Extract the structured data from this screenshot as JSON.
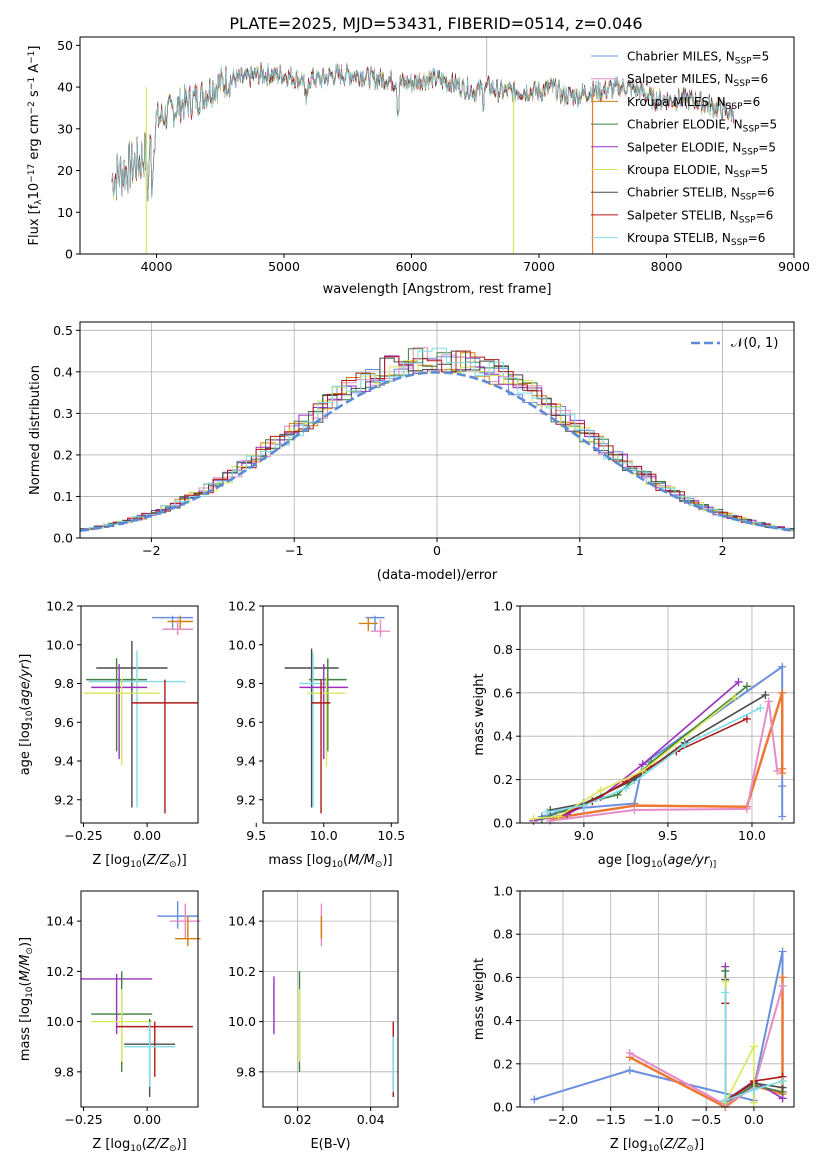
{
  "title": "PLATE=2025, MJD=53431, FIBERID=0514, z=0.046",
  "colors": {
    "chabrier_miles": "#6a8fdd",
    "salpeter_miles": "#e58cc6",
    "kroupa_miles": "#d2800c",
    "chabrier_elodie": "#3f7f3f",
    "salpeter_elodie": "#9b30c0",
    "kroupa_elodie": "#dbe65a",
    "chabrier_stelib": "#4a4a4a",
    "salpeter_stelib": "#b01818",
    "kroupa_stelib": "#7fdde6",
    "orange": "#ee7733",
    "gaussian": "#5b8bd6"
  },
  "chart_data": [
    {
      "type": "line",
      "panel": "spectrum",
      "xlabel": "wavelength [Angstrom, rest frame]",
      "ylabel": "Flux [f",
      "ylabel_parts": [
        "Flux [f",
        "λ",
        "10",
        "−17",
        " erg cm",
        "−2",
        " s",
        "−1",
        " A",
        "−1",
        "]"
      ],
      "xlim": [
        3400,
        9000
      ],
      "ylim": [
        0,
        52
      ],
      "xticks": [
        "4000",
        "5000",
        "6000",
        "7000",
        "8000",
        "9000"
      ],
      "yticks": [
        "0",
        "10",
        "20",
        "30",
        "40",
        "50"
      ],
      "legend_position": "top-right",
      "legend": [
        {
          "name": "Chabrier MILES, N",
          "sub": "SSP",
          "tail": "=5",
          "color": "#6a8fdd"
        },
        {
          "name": "Salpeter MILES, N",
          "sub": "SSP",
          "tail": "=6",
          "color": "#e58cc6"
        },
        {
          "name": "Kroupa MILES, N",
          "sub": "SSP",
          "tail": "=6",
          "color": "#d2800c"
        },
        {
          "name": "Chabrier ELODIE, N",
          "sub": "SSP",
          "tail": "=5",
          "color": "#3f7f3f"
        },
        {
          "name": "Salpeter ELODIE, N",
          "sub": "SSP",
          "tail": "=5",
          "color": "#9b30c0"
        },
        {
          "name": "Kroupa ELODIE, N",
          "sub": "SSP",
          "tail": "=5",
          "color": "#dbe65a"
        },
        {
          "name": "Chabrier STELIB, N",
          "sub": "SSP",
          "tail": "=6",
          "color": "#4a4a4a"
        },
        {
          "name": "Salpeter STELIB, N",
          "sub": "SSP",
          "tail": "=6",
          "color": "#b01818"
        },
        {
          "name": "Kroupa STELIB, N",
          "sub": "SSP",
          "tail": "=6",
          "color": "#7fdde6"
        }
      ],
      "continuum_points": [
        [
          3650,
          18
        ],
        [
          3750,
          20
        ],
        [
          3850,
          22
        ],
        [
          3950,
          25
        ],
        [
          4000,
          32
        ],
        [
          4100,
          34
        ],
        [
          4200,
          36
        ],
        [
          4300,
          37
        ],
        [
          4400,
          39
        ],
        [
          4500,
          41
        ],
        [
          4600,
          42
        ],
        [
          4700,
          42
        ],
        [
          4800,
          43
        ],
        [
          4900,
          43
        ],
        [
          5000,
          43
        ],
        [
          5100,
          42
        ],
        [
          5200,
          42
        ],
        [
          5300,
          42
        ],
        [
          5400,
          43
        ],
        [
          5500,
          43
        ],
        [
          5600,
          43
        ],
        [
          5700,
          42
        ],
        [
          5800,
          42
        ],
        [
          5900,
          41
        ],
        [
          6000,
          41
        ],
        [
          6100,
          42
        ],
        [
          6200,
          42
        ],
        [
          6300,
          41
        ],
        [
          6400,
          40
        ],
        [
          6500,
          39
        ],
        [
          6600,
          40
        ],
        [
          6700,
          39
        ],
        [
          6800,
          39
        ],
        [
          6900,
          39
        ],
        [
          7000,
          39
        ],
        [
          7100,
          40
        ],
        [
          7200,
          38
        ],
        [
          7300,
          38
        ],
        [
          7400,
          39
        ],
        [
          7500,
          39
        ],
        [
          7600,
          40
        ],
        [
          7700,
          40
        ],
        [
          7800,
          39
        ],
        [
          7900,
          37
        ],
        [
          8000,
          37
        ],
        [
          8100,
          37
        ],
        [
          8200,
          37
        ],
        [
          8300,
          36
        ],
        [
          8400,
          35
        ],
        [
          8500,
          34
        ]
      ]
    },
    {
      "type": "bar",
      "panel": "residual-histogram",
      "xlabel": "(data-model)/error",
      "ylabel": "Normed distribution",
      "xlim": [
        -2.5,
        2.5
      ],
      "ylim": [
        0,
        0.52
      ],
      "xticks": [
        "−2",
        "−1",
        "0",
        "1",
        "2"
      ],
      "yticks": [
        "0.0",
        "0.1",
        "0.2",
        "0.3",
        "0.4",
        "0.5"
      ],
      "grid": true,
      "legend_position": "top-right",
      "legend_label": "𝒩(0, 1)",
      "bin_width": 0.1,
      "note": "Nine overlapping step histograms approximating a normal distribution"
    },
    {
      "type": "scatter",
      "panel": "age-vs-Z",
      "xlabel": "Z [log",
      "xlabel_parts": [
        "Z [log",
        "10",
        "(",
        "Z/Z",
        "⊙",
        ")]"
      ],
      "ylabel_parts": [
        "age  [log",
        "10",
        "(",
        "age/yr",
        ")]"
      ],
      "xlim": [
        -0.26,
        0.2
      ],
      "ylim": [
        9.08,
        10.2
      ],
      "xticks": [
        "−0.25",
        "0.00"
      ],
      "yticks": [
        "9.2",
        "9.4",
        "9.6",
        "9.8",
        "10.0",
        "10.2"
      ],
      "points": [
        {
          "x": 0.1,
          "y": 10.14,
          "xerr": 0.08,
          "ylo": 10.08,
          "yhi": 10.15,
          "color": "#6a8fdd"
        },
        {
          "x": 0.13,
          "y": 10.12,
          "xerr": 0.05,
          "ylo": 10.08,
          "yhi": 10.15,
          "color": "#d2800c"
        },
        {
          "x": 0.12,
          "y": 10.08,
          "xerr": 0.06,
          "ylo": 10.05,
          "yhi": 10.13,
          "color": "#e58cc6"
        },
        {
          "x": -0.06,
          "y": 9.88,
          "xerr": 0.14,
          "ylo": 9.16,
          "yhi": 10.02,
          "color": "#4a4a4a"
        },
        {
          "x": -0.12,
          "y": 9.82,
          "xerr": 0.12,
          "ylo": 9.45,
          "yhi": 9.93,
          "color": "#3f7f3f"
        },
        {
          "x": -0.04,
          "y": 9.81,
          "xerr": 0.19,
          "ylo": 9.16,
          "yhi": 9.97,
          "color": "#7fdde6"
        },
        {
          "x": -0.11,
          "y": 9.78,
          "xerr": 0.11,
          "ylo": 9.41,
          "yhi": 9.9,
          "color": "#9b30c0"
        },
        {
          "x": -0.1,
          "y": 9.75,
          "xerr": 0.15,
          "ylo": 9.38,
          "yhi": 9.83,
          "color": "#dbe65a"
        },
        {
          "x": 0.07,
          "y": 9.7,
          "xerr": 0.13,
          "ylo": 9.13,
          "yhi": 9.82,
          "color": "#b01818"
        }
      ]
    },
    {
      "type": "scatter",
      "panel": "age-vs-mass",
      "xlabel_parts": [
        "mass [log",
        "10",
        "(",
        "M/M",
        "⊙",
        ")]"
      ],
      "xlim": [
        9.55,
        10.55
      ],
      "ylim": [
        9.08,
        10.2
      ],
      "xticks": [
        "9.5",
        "10.0",
        "10.5"
      ],
      "yticks": [
        "9.2",
        "9.4",
        "9.6",
        "9.8",
        "10.0",
        "10.2"
      ],
      "points": [
        {
          "x": 10.38,
          "y": 10.14,
          "xerr": 0.07,
          "ylo": 10.07,
          "yhi": 10.15,
          "color": "#6a8fdd"
        },
        {
          "x": 10.33,
          "y": 10.11,
          "xerr": 0.07,
          "ylo": 10.07,
          "yhi": 10.14,
          "color": "#d2800c"
        },
        {
          "x": 10.42,
          "y": 10.07,
          "xerr": 0.07,
          "ylo": 10.04,
          "yhi": 10.13,
          "color": "#e58cc6"
        },
        {
          "x": 9.91,
          "y": 9.88,
          "xerr": 0.2,
          "ylo": 9.16,
          "yhi": 9.98,
          "color": "#4a4a4a"
        },
        {
          "x": 10.03,
          "y": 9.82,
          "xerr": 0.14,
          "ylo": 9.45,
          "yhi": 9.93,
          "color": "#3f7f3f"
        },
        {
          "x": 9.92,
          "y": 9.8,
          "xerr": 0.1,
          "ylo": 9.16,
          "yhi": 9.96,
          "color": "#7fdde6"
        },
        {
          "x": 10.0,
          "y": 9.78,
          "xerr": 0.18,
          "ylo": 9.41,
          "yhi": 9.9,
          "color": "#9b30c0"
        },
        {
          "x": 10.02,
          "y": 9.75,
          "xerr": 0.14,
          "ylo": 9.37,
          "yhi": 9.83,
          "color": "#dbe65a"
        },
        {
          "x": 9.98,
          "y": 9.7,
          "xerr": 0.07,
          "ylo": 9.13,
          "yhi": 9.82,
          "color": "#b01818"
        }
      ]
    },
    {
      "type": "line",
      "panel": "mass-weight-vs-age",
      "xlabel_parts": [
        "age  [log",
        "10",
        "(",
        "age/yr",
        ")]"
      ],
      "ylabel": "mass weight",
      "xlim": [
        8.62,
        10.25
      ],
      "ylim": [
        0,
        1.0
      ],
      "xticks": [
        "9.0",
        "9.5",
        "10.0"
      ],
      "yticks": [
        "0.0",
        "0.2",
        "0.4",
        "0.6",
        "0.8",
        "1.0"
      ],
      "grid": true,
      "series": [
        {
          "color": "#6a8fdd",
          "width": 2,
          "x": [
            8.75,
            8.85,
            9.0,
            9.3,
            9.35,
            10.18,
            10.18,
            10.18
          ],
          "y": [
            0.03,
            0.05,
            0.07,
            0.09,
            0.27,
            0.72,
            0.17,
            0.03
          ]
        },
        {
          "color": "#ee7733",
          "width": 2.5,
          "x": [
            8.8,
            9.3,
            9.97,
            10.18,
            10.18,
            10.18
          ],
          "y": [
            0.02,
            0.08,
            0.075,
            0.6,
            0.25,
            0.23
          ]
        },
        {
          "color": "#e58cc6",
          "width": 2,
          "x": [
            8.8,
            9.3,
            9.97,
            10.1,
            10.15
          ],
          "y": [
            0.01,
            0.06,
            0.065,
            0.56,
            0.24
          ]
        },
        {
          "color": "#9b30c0",
          "width": 1.6,
          "x": [
            8.7,
            8.9,
            9.1,
            9.35,
            9.92
          ],
          "y": [
            0.01,
            0.04,
            0.12,
            0.27,
            0.65
          ]
        },
        {
          "color": "#3f7f3f",
          "width": 1.6,
          "x": [
            8.75,
            9.0,
            9.2,
            9.4,
            9.97
          ],
          "y": [
            0.02,
            0.09,
            0.13,
            0.28,
            0.63
          ]
        },
        {
          "color": "#4a4a4a",
          "width": 1.6,
          "x": [
            8.8,
            9.0,
            9.3,
            9.6,
            10.08
          ],
          "y": [
            0.06,
            0.09,
            0.2,
            0.37,
            0.59
          ]
        },
        {
          "color": "#b01818",
          "width": 1.6,
          "x": [
            8.85,
            9.05,
            9.25,
            9.55,
            9.97
          ],
          "y": [
            0.03,
            0.1,
            0.19,
            0.33,
            0.48
          ]
        },
        {
          "color": "#dbe65a",
          "width": 1.6,
          "x": [
            8.7,
            8.85,
            9.1,
            9.35,
            9.9
          ],
          "y": [
            0.02,
            0.03,
            0.15,
            0.24,
            0.58
          ]
        },
        {
          "color": "#7fdde6",
          "width": 1.6,
          "x": [
            8.78,
            9.0,
            9.25,
            9.6,
            10.05
          ],
          "y": [
            0.05,
            0.08,
            0.16,
            0.36,
            0.53
          ]
        }
      ]
    },
    {
      "type": "scatter",
      "panel": "mass-vs-Z",
      "xlabel_parts": [
        "Z [log",
        "10",
        "(",
        "Z/Z",
        "⊙",
        ")]"
      ],
      "ylabel_parts": [
        "mass [log",
        "10",
        "(",
        "M/M",
        "⊙",
        ")]"
      ],
      "xlim": [
        -0.26,
        0.2
      ],
      "ylim": [
        9.66,
        10.52
      ],
      "xticks": [
        "−0.25",
        "0.00"
      ],
      "yticks": [
        "9.8",
        "10.0",
        "10.2",
        "10.4"
      ],
      "points": [
        {
          "x": 0.12,
          "y": 10.42,
          "xerr": 0.08,
          "ylo": 10.37,
          "yhi": 10.48,
          "color": "#6a8fdd"
        },
        {
          "x": 0.15,
          "y": 10.4,
          "xerr": 0.06,
          "ylo": 10.33,
          "yhi": 10.47,
          "color": "#e58cc6"
        },
        {
          "x": 0.16,
          "y": 10.33,
          "xerr": 0.05,
          "ylo": 10.3,
          "yhi": 10.42,
          "color": "#d2800c"
        },
        {
          "x": -0.12,
          "y": 10.17,
          "xerr": 0.14,
          "ylo": 9.95,
          "yhi": 10.19,
          "color": "#9b30c0"
        },
        {
          "x": -0.1,
          "y": 10.03,
          "xerr": 0.12,
          "ylo": 9.8,
          "yhi": 10.2,
          "color": "#3f7f3f"
        },
        {
          "x": -0.1,
          "y": 10.0,
          "xerr": 0.12,
          "ylo": 9.84,
          "yhi": 10.13,
          "color": "#dbe65a"
        },
        {
          "x": 0.03,
          "y": 9.98,
          "xerr": 0.15,
          "ylo": 9.78,
          "yhi": 10.0,
          "color": "#b01818"
        },
        {
          "x": 0.01,
          "y": 9.91,
          "xerr": 0.1,
          "ylo": 9.7,
          "yhi": 10.01,
          "color": "#4a4a4a"
        },
        {
          "x": 0.01,
          "y": 9.9,
          "xerr": 0.1,
          "ylo": 9.74,
          "yhi": 10.0,
          "color": "#7fdde6"
        }
      ]
    },
    {
      "type": "scatter",
      "panel": "mass-vs-EBV",
      "xlabel": "E(B-V)",
      "xlim": [
        0.0105,
        0.0475
      ],
      "ylim": [
        9.66,
        10.52
      ],
      "xticks": [
        "0.02",
        "0.04"
      ],
      "yticks": [
        "9.8",
        "10.0",
        "10.2",
        "10.4"
      ],
      "grid": true,
      "points": [
        {
          "x": 0.0135,
          "ylo": 9.95,
          "yhi": 10.18,
          "color": "#9b30c0"
        },
        {
          "x": 0.0205,
          "ylo": 9.8,
          "yhi": 10.2,
          "color": "#3f7f3f"
        },
        {
          "x": 0.0205,
          "ylo": 9.84,
          "yhi": 10.13,
          "color": "#dbe65a"
        },
        {
          "x": 0.0265,
          "ylo": 10.3,
          "yhi": 10.47,
          "color": "#e58cc6"
        },
        {
          "x": 0.0265,
          "ylo": 10.33,
          "yhi": 10.42,
          "color": "#d2800c"
        },
        {
          "x": 0.0462,
          "ylo": 9.7,
          "yhi": 10.0,
          "color": "#b01818"
        },
        {
          "x": 0.0462,
          "ylo": 9.72,
          "yhi": 9.94,
          "color": "#7fdde6"
        }
      ]
    },
    {
      "type": "line",
      "panel": "mass-weight-vs-Z",
      "xlabel_parts": [
        "Z [log",
        "10",
        "(",
        "Z/Z",
        "⊙",
        ")]"
      ],
      "ylabel": "mass weight",
      "xlim": [
        -2.45,
        0.42
      ],
      "ylim": [
        0,
        1.0
      ],
      "xticks": [
        "−2.0",
        "−1.5",
        "−1.0",
        "−0.5",
        "0.0"
      ],
      "yticks": [
        "0.0",
        "0.2",
        "0.4",
        "0.6",
        "0.8",
        "1.0"
      ],
      "grid": true,
      "series": [
        {
          "color": "#6a8fdd",
          "width": 2,
          "x": [
            -2.3,
            -1.3,
            0.0,
            0.0,
            0.3,
            0.3
          ],
          "y": [
            0.035,
            0.17,
            0.03,
            0.09,
            0.72,
            0.04
          ]
        },
        {
          "color": "#ee7733",
          "width": 2.5,
          "x": [
            -1.3,
            -0.3,
            0.0,
            0.3,
            0.3
          ],
          "y": [
            0.23,
            0.0,
            0.1,
            0.06,
            0.6
          ]
        },
        {
          "color": "#e58cc6",
          "width": 2,
          "x": [
            -1.3,
            -0.3,
            0.0,
            0.3
          ],
          "y": [
            0.25,
            0.01,
            0.09,
            0.56
          ]
        },
        {
          "color": "#9b30c0",
          "width": 1.6,
          "x": [
            -0.3,
            -0.3,
            0.0,
            0.3
          ],
          "y": [
            0.65,
            0.03,
            0.12,
            0.04
          ]
        },
        {
          "color": "#3f7f3f",
          "width": 1.6,
          "x": [
            -0.3,
            -0.3,
            0.0,
            0.3
          ],
          "y": [
            0.63,
            0.02,
            0.1,
            0.07
          ]
        },
        {
          "color": "#4a4a4a",
          "width": 1.6,
          "x": [
            -0.3,
            -0.3,
            0.0,
            0.3
          ],
          "y": [
            0.59,
            0.03,
            0.11,
            0.09
          ]
        },
        {
          "color": "#b01818",
          "width": 1.6,
          "x": [
            -0.3,
            -0.3,
            0.0,
            0.3
          ],
          "y": [
            0.48,
            0.02,
            0.12,
            0.14
          ]
        },
        {
          "color": "#dbe65a",
          "width": 1.6,
          "x": [
            -0.3,
            -0.3,
            0.0,
            0.0
          ],
          "y": [
            0.58,
            0.02,
            0.28,
            0.02
          ]
        },
        {
          "color": "#7fdde6",
          "width": 1.6,
          "x": [
            -0.3,
            -0.3,
            0.0,
            0.3
          ],
          "y": [
            0.53,
            0.03,
            0.08,
            0.12
          ]
        }
      ]
    }
  ]
}
